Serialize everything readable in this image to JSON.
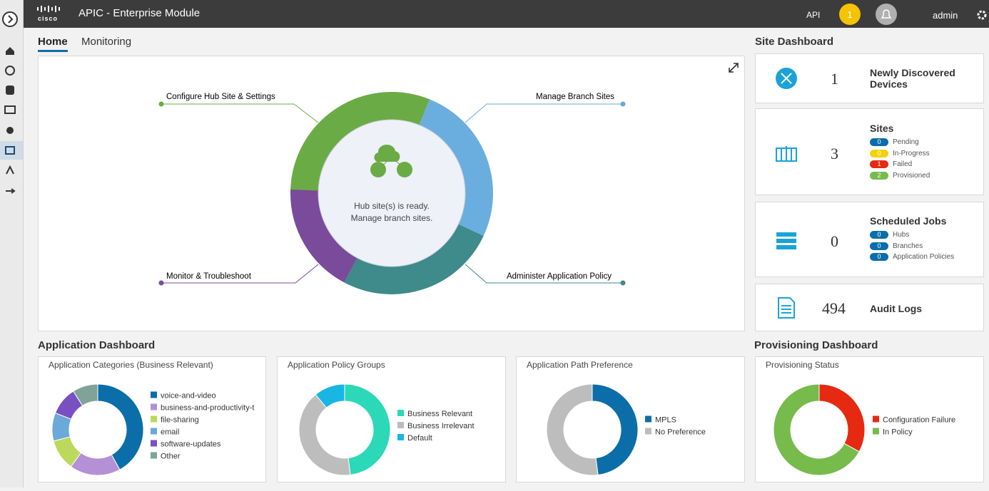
{
  "header": {
    "brand": "cisco",
    "title": "APIC - Enterprise Module",
    "api": "API",
    "notification_count": "1",
    "user": "admin"
  },
  "tabs": [
    "Home",
    "Monitoring"
  ],
  "workflow": {
    "steps": [
      "Configure Hub Site & Settings",
      "Manage Branch Sites",
      "Monitor & Troubleshoot",
      "Administer Application Policy"
    ],
    "center_text": [
      "Hub site(s) is ready.",
      "Manage branch sites."
    ]
  },
  "site_dashboard": {
    "title": "Site Dashboard",
    "devices": {
      "count": 1,
      "label": "Newly Discovered Devices"
    },
    "sites": {
      "count": 3,
      "label": "Sites",
      "statuses": [
        {
          "count": 0,
          "label": "Pending",
          "color": "#0b6ea8"
        },
        {
          "count": 0,
          "label": "In-Progress",
          "color": "#f2d20c"
        },
        {
          "count": 1,
          "label": "Failed",
          "color": "#e52a11"
        },
        {
          "count": 2,
          "label": "Provisioned",
          "color": "#76bb4c"
        }
      ]
    },
    "jobs": {
      "count": 0,
      "label": "Scheduled Jobs",
      "items": [
        {
          "count": 0,
          "label": "Hubs"
        },
        {
          "count": 0,
          "label": "Branches"
        },
        {
          "count": 0,
          "label": "Application Policies"
        }
      ]
    },
    "audit": {
      "count": 494,
      "label": "Audit Logs"
    }
  },
  "application_dashboard": {
    "title": "Application Dashboard",
    "charts": [
      {
        "title": "Application Categories (Business Relevant)",
        "type": "donut",
        "categories": [
          "voice-and-video",
          "business-and-productivity-t",
          "file-sharing",
          "email",
          "software-updates",
          "Other"
        ],
        "values": [
          42,
          18,
          11,
          10,
          10,
          9
        ],
        "colors": [
          "#0b6ea8",
          "#b590d6",
          "#bcd95b",
          "#6aa9d8",
          "#7a4fc1",
          "#7fa398"
        ]
      },
      {
        "title": "Application Policy Groups",
        "type": "donut",
        "categories": [
          "Business Relevant",
          "Business Irrelevant",
          "Default"
        ],
        "values": [
          48,
          41,
          11
        ],
        "colors": [
          "#2bd8b8",
          "#bdbdbd",
          "#19b6e4"
        ]
      },
      {
        "title": "Application Path Preference",
        "type": "donut",
        "categories": [
          "MPLS",
          "No Preference"
        ],
        "values": [
          48,
          52
        ],
        "colors": [
          "#0b6ea8",
          "#bdbdbd"
        ]
      }
    ]
  },
  "provisioning_dashboard": {
    "title": "Provisioning Dashboard",
    "chart": {
      "title": "Provisioning Status",
      "type": "donut",
      "categories": [
        "Configuration Failure",
        "In Policy"
      ],
      "values": [
        33,
        67
      ],
      "colors": [
        "#e52a11",
        "#76bb4c"
      ]
    }
  }
}
